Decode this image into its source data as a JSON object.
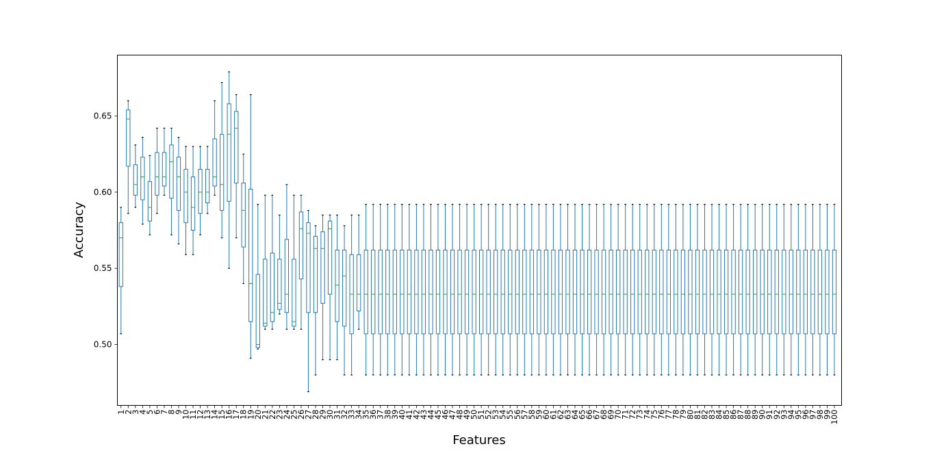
{
  "chart_data": {
    "type": "boxplot",
    "xlabel": "Features",
    "ylabel": "Accuracy",
    "ylim": [
      0.46,
      0.69
    ],
    "yticks": [
      0.5,
      0.55,
      0.6,
      0.65
    ],
    "ytick_labels": [
      "0.50",
      "0.55",
      "0.60",
      "0.65"
    ],
    "grid": false,
    "colors": {
      "box": "#1f77b4",
      "median": "#2ca02c",
      "cap": "#000000",
      "axes": "#000000"
    },
    "categories": [
      "1",
      "2",
      "3",
      "4",
      "5",
      "6",
      "7",
      "8",
      "9",
      "10",
      "11",
      "12",
      "13",
      "14",
      "15",
      "16",
      "17",
      "18",
      "19",
      "20",
      "21",
      "22",
      "23",
      "24",
      "25",
      "26",
      "27",
      "28",
      "29",
      "30",
      "31",
      "32",
      "33",
      "34",
      "35",
      "36",
      "37",
      "38",
      "39",
      "40",
      "41",
      "42",
      "43",
      "44",
      "45",
      "46",
      "47",
      "48",
      "49",
      "50",
      "51",
      "52",
      "53",
      "54",
      "55",
      "56",
      "57",
      "58",
      "59",
      "60",
      "61",
      "62",
      "63",
      "64",
      "65",
      "66",
      "67",
      "68",
      "69",
      "70",
      "71",
      "72",
      "73",
      "74",
      "75",
      "76",
      "77",
      "78",
      "79",
      "80",
      "81",
      "82",
      "83",
      "84",
      "85",
      "86",
      "87",
      "88",
      "89",
      "90",
      "91",
      "92",
      "93",
      "94",
      "95",
      "96",
      "97",
      "98",
      "99",
      "100"
    ],
    "boxes_head": [
      {
        "whislo": 0.507,
        "q1": 0.538,
        "med": 0.57,
        "q3": 0.58,
        "whishi": 0.59
      },
      {
        "whislo": 0.586,
        "q1": 0.617,
        "med": 0.648,
        "q3": 0.654,
        "whishi": 0.66
      },
      {
        "whislo": 0.59,
        "q1": 0.598,
        "med": 0.605,
        "q3": 0.618,
        "whishi": 0.631
      },
      {
        "whislo": 0.579,
        "q1": 0.595,
        "med": 0.61,
        "q3": 0.623,
        "whishi": 0.636
      },
      {
        "whislo": 0.572,
        "q1": 0.581,
        "med": 0.59,
        "q3": 0.607,
        "whishi": 0.624
      },
      {
        "whislo": 0.586,
        "q1": 0.598,
        "med": 0.61,
        "q3": 0.626,
        "whishi": 0.642
      },
      {
        "whislo": 0.598,
        "q1": 0.604,
        "med": 0.61,
        "q3": 0.626,
        "whishi": 0.642
      },
      {
        "whislo": 0.572,
        "q1": 0.596,
        "med": 0.62,
        "q3": 0.631,
        "whishi": 0.642
      },
      {
        "whislo": 0.566,
        "q1": 0.588,
        "med": 0.61,
        "q3": 0.623,
        "whishi": 0.636
      },
      {
        "whislo": 0.559,
        "q1": 0.58,
        "med": 0.6,
        "q3": 0.615,
        "whishi": 0.63
      },
      {
        "whislo": 0.559,
        "q1": 0.575,
        "med": 0.59,
        "q3": 0.61,
        "whishi": 0.63
      },
      {
        "whislo": 0.572,
        "q1": 0.586,
        "med": 0.6,
        "q3": 0.615,
        "whishi": 0.63
      },
      {
        "whislo": 0.586,
        "q1": 0.593,
        "med": 0.6,
        "q3": 0.615,
        "whishi": 0.63
      },
      {
        "whislo": 0.598,
        "q1": 0.604,
        "med": 0.61,
        "q3": 0.635,
        "whishi": 0.66
      },
      {
        "whislo": 0.57,
        "q1": 0.588,
        "med": 0.605,
        "q3": 0.638,
        "whishi": 0.672
      },
      {
        "whislo": 0.55,
        "q1": 0.594,
        "med": 0.638,
        "q3": 0.658,
        "whishi": 0.679
      },
      {
        "whislo": 0.57,
        "q1": 0.606,
        "med": 0.642,
        "q3": 0.653,
        "whishi": 0.664
      },
      {
        "whislo": 0.54,
        "q1": 0.564,
        "med": 0.588,
        "q3": 0.606,
        "whishi": 0.625
      },
      {
        "whislo": 0.491,
        "q1": 0.515,
        "med": 0.54,
        "q3": 0.602,
        "whishi": 0.664
      },
      {
        "whislo": 0.497,
        "q1": 0.498,
        "med": 0.5,
        "q3": 0.546,
        "whishi": 0.592
      },
      {
        "whislo": 0.51,
        "q1": 0.512,
        "med": 0.514,
        "q3": 0.556,
        "whishi": 0.598
      },
      {
        "whislo": 0.51,
        "q1": 0.515,
        "med": 0.521,
        "q3": 0.56,
        "whishi": 0.598
      },
      {
        "whislo": 0.52,
        "q1": 0.523,
        "med": 0.527,
        "q3": 0.556,
        "whishi": 0.585
      },
      {
        "whislo": 0.51,
        "q1": 0.521,
        "med": 0.533,
        "q3": 0.569,
        "whishi": 0.605
      },
      {
        "whislo": 0.51,
        "q1": 0.512,
        "med": 0.515,
        "q3": 0.556,
        "whishi": 0.598
      },
      {
        "whislo": 0.51,
        "q1": 0.543,
        "med": 0.576,
        "q3": 0.587,
        "whishi": 0.598
      },
      {
        "whislo": 0.469,
        "q1": 0.521,
        "med": 0.573,
        "q3": 0.58,
        "whishi": 0.588
      },
      {
        "whislo": 0.48,
        "q1": 0.521,
        "med": 0.563,
        "q3": 0.571,
        "whishi": 0.578
      },
      {
        "whislo": 0.49,
        "q1": 0.527,
        "med": 0.563,
        "q3": 0.574,
        "whishi": 0.585
      },
      {
        "whislo": 0.49,
        "q1": 0.533,
        "med": 0.576,
        "q3": 0.581,
        "whishi": 0.585
      },
      {
        "whislo": 0.49,
        "q1": 0.515,
        "med": 0.539,
        "q3": 0.562,
        "whishi": 0.585
      },
      {
        "whislo": 0.48,
        "q1": 0.512,
        "med": 0.545,
        "q3": 0.562,
        "whishi": 0.578
      },
      {
        "whislo": 0.48,
        "q1": 0.507,
        "med": 0.533,
        "q3": 0.559,
        "whishi": 0.585
      },
      {
        "whislo": 0.51,
        "q1": 0.522,
        "med": 0.533,
        "q3": 0.559,
        "whishi": 0.585
      }
    ],
    "box_rest": {
      "from": 35,
      "to": 100,
      "whislo": 0.48,
      "q1": 0.507,
      "med": 0.533,
      "q3": 0.562,
      "whishi": 0.592
    }
  }
}
